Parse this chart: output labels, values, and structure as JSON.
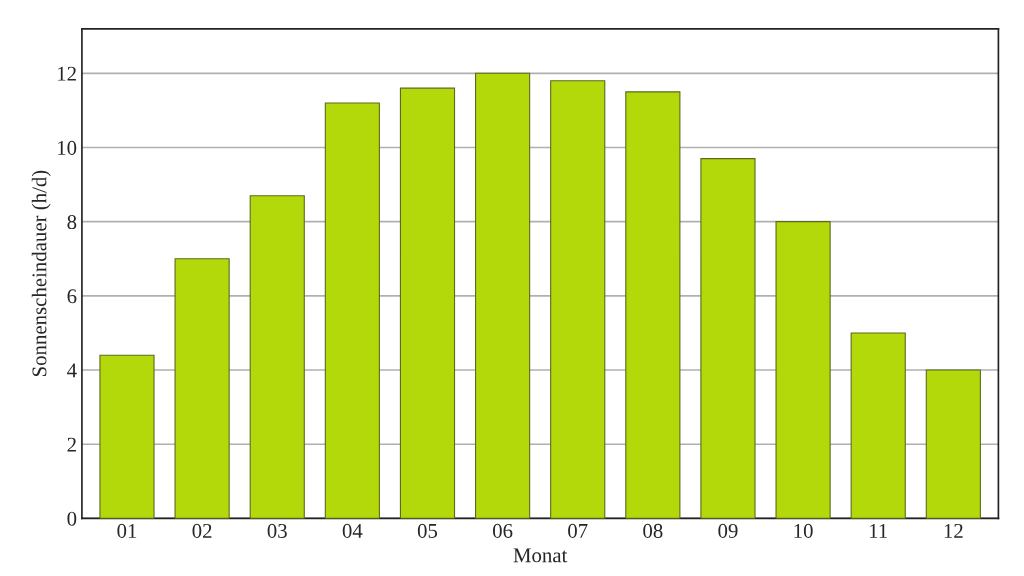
{
  "chart_data": {
    "type": "bar",
    "xlabel": "Monat",
    "ylabel": "Sonnenscheindauer (h/d)",
    "categories": [
      "01",
      "02",
      "03",
      "04",
      "05",
      "06",
      "07",
      "08",
      "09",
      "10",
      "11",
      "12"
    ],
    "values": [
      4.4,
      7.0,
      8.7,
      11.2,
      11.6,
      12.0,
      11.8,
      11.5,
      9.7,
      8.0,
      5.0,
      4.0
    ],
    "color": "#b4d90a",
    "ylim": [
      0,
      13.2
    ],
    "yticks": [
      0,
      2,
      4,
      6,
      8,
      10,
      12
    ],
    "grid": "y"
  }
}
